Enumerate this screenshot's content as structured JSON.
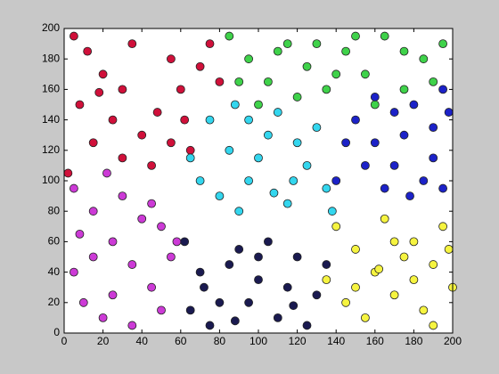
{
  "chart_data": {
    "type": "scatter",
    "xlim": [
      0,
      200
    ],
    "ylim": [
      0,
      200
    ],
    "xticks": [
      0,
      20,
      40,
      60,
      80,
      100,
      120,
      140,
      160,
      180,
      200
    ],
    "yticks": [
      0,
      20,
      40,
      60,
      80,
      100,
      120,
      140,
      160,
      180,
      200
    ],
    "grid": false,
    "series": [
      {
        "color": "#d0103a",
        "x": [
          5,
          12,
          20,
          30,
          8,
          25,
          40,
          55,
          48,
          60,
          70,
          75,
          35,
          15,
          30,
          45,
          65,
          55,
          80,
          2,
          18,
          62
        ],
        "values": [
          195,
          185,
          170,
          160,
          150,
          140,
          130,
          125,
          145,
          160,
          175,
          190,
          190,
          125,
          115,
          110,
          120,
          180,
          165,
          105,
          158,
          140
        ]
      },
      {
        "color": "#3fd24a",
        "x": [
          85,
          95,
          105,
          115,
          125,
          135,
          145,
          155,
          165,
          175,
          185,
          195,
          100,
          120,
          140,
          160,
          190,
          110,
          150,
          130,
          90,
          175
        ],
        "values": [
          195,
          180,
          165,
          190,
          175,
          160,
          185,
          170,
          195,
          160,
          180,
          190,
          150,
          155,
          170,
          150,
          165,
          185,
          195,
          190,
          165,
          185
        ]
      },
      {
        "color": "#1c22c8",
        "x": [
          150,
          160,
          170,
          180,
          190,
          195,
          185,
          175,
          165,
          155,
          145,
          190,
          198,
          170,
          160,
          178,
          140,
          195
        ],
        "values": [
          140,
          125,
          110,
          150,
          135,
          160,
          100,
          130,
          95,
          110,
          125,
          115,
          145,
          145,
          155,
          90,
          100,
          95
        ]
      },
      {
        "color": "#33d6ee",
        "x": [
          75,
          85,
          95,
          105,
          115,
          125,
          135,
          70,
          90,
          110,
          120,
          80,
          100,
          130,
          65,
          95,
          118,
          138,
          88,
          108
        ],
        "values": [
          140,
          120,
          100,
          130,
          85,
          110,
          95,
          100,
          80,
          145,
          125,
          90,
          115,
          135,
          115,
          140,
          100,
          80,
          150,
          92
        ]
      },
      {
        "color": "#cc3ad6",
        "x": [
          5,
          15,
          25,
          35,
          45,
          10,
          20,
          50,
          55,
          30,
          40,
          5,
          15,
          25,
          35,
          45,
          58,
          8,
          22,
          50
        ],
        "values": [
          95,
          80,
          60,
          45,
          30,
          20,
          10,
          70,
          50,
          90,
          75,
          40,
          50,
          25,
          5,
          85,
          60,
          65,
          105,
          15
        ]
      },
      {
        "color": "#1a1a50",
        "x": [
          62,
          70,
          80,
          90,
          100,
          110,
          120,
          130,
          65,
          75,
          85,
          95,
          105,
          115,
          125,
          135,
          72,
          100,
          118,
          88
        ],
        "values": [
          60,
          40,
          20,
          55,
          35,
          10,
          50,
          25,
          15,
          5,
          45,
          20,
          60,
          30,
          5,
          45,
          30,
          50,
          18,
          8
        ]
      },
      {
        "color": "#f6f440",
        "x": [
          140,
          150,
          160,
          170,
          180,
          190,
          200,
          145,
          155,
          165,
          175,
          185,
          195,
          135,
          162,
          170,
          190,
          150,
          180,
          198
        ],
        "values": [
          70,
          55,
          40,
          25,
          60,
          45,
          30,
          20,
          10,
          75,
          50,
          15,
          70,
          35,
          42,
          60,
          5,
          30,
          35,
          55
        ]
      }
    ]
  }
}
